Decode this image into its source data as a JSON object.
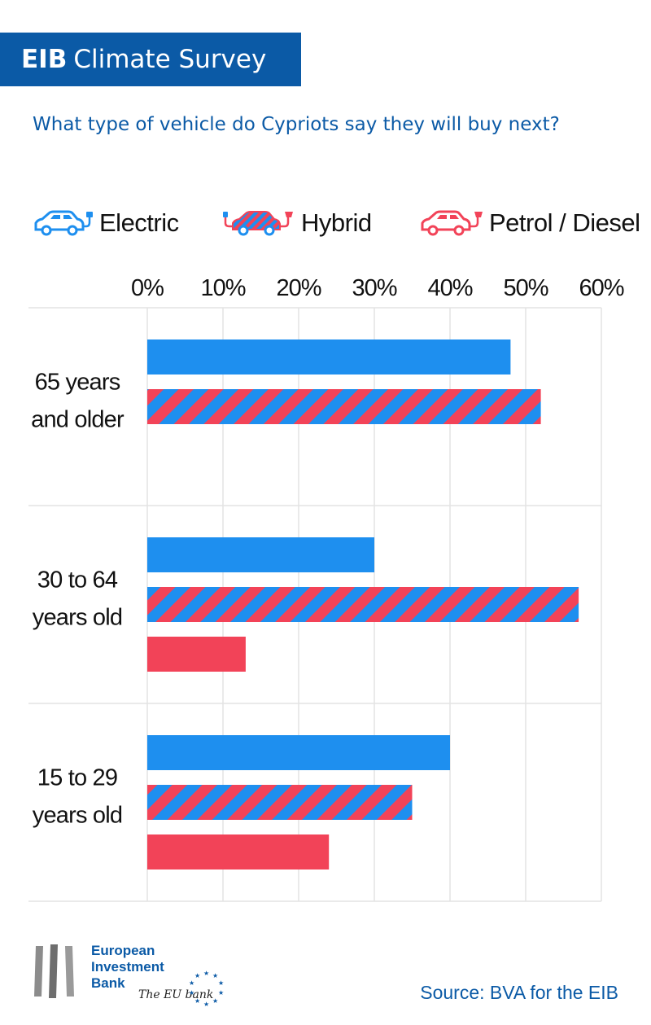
{
  "header": {
    "brand": "EIB",
    "title": "Climate Survey"
  },
  "subtitle": "What type of vehicle do Cypriots say they will buy next?",
  "legend": [
    {
      "label": "Electric",
      "icon": "electric-car-icon"
    },
    {
      "label": "Hybrid",
      "icon": "hybrid-car-icon"
    },
    {
      "label": "Petrol / Diesel",
      "icon": "petrol-car-icon"
    }
  ],
  "colors": {
    "electric": "#1e8fef",
    "petrol": "#f24358",
    "brand": "#0b5aa6"
  },
  "chart_data": {
    "type": "bar",
    "orientation": "horizontal",
    "title": "What type of vehicle do Cypriots say they will buy next?",
    "categories": [
      "65 years and older",
      "30 to 64 years old",
      "15 to 29 years old"
    ],
    "category_lines": [
      [
        "65 years",
        "and older"
      ],
      [
        "30 to 64",
        "years old"
      ],
      [
        "15 to 29",
        "years old"
      ]
    ],
    "xlim": [
      0,
      60
    ],
    "ticks": [
      0,
      10,
      20,
      30,
      40,
      50,
      60
    ],
    "tick_labels": [
      "0%",
      "10%",
      "20%",
      "30%",
      "40%",
      "50%",
      "60%"
    ],
    "series": [
      {
        "name": "Electric",
        "values": [
          48,
          30,
          40
        ]
      },
      {
        "name": "Hybrid",
        "values": [
          52,
          57,
          35
        ]
      },
      {
        "name": "Petrol / Diesel",
        "values": [
          0,
          13,
          24
        ]
      }
    ],
    "grid": true,
    "legend_position": "top"
  },
  "footer": {
    "logo_lines": [
      "European",
      "Investment",
      "Bank"
    ],
    "tagline": "The EU bank",
    "source": "Source: BVA for the EIB"
  }
}
